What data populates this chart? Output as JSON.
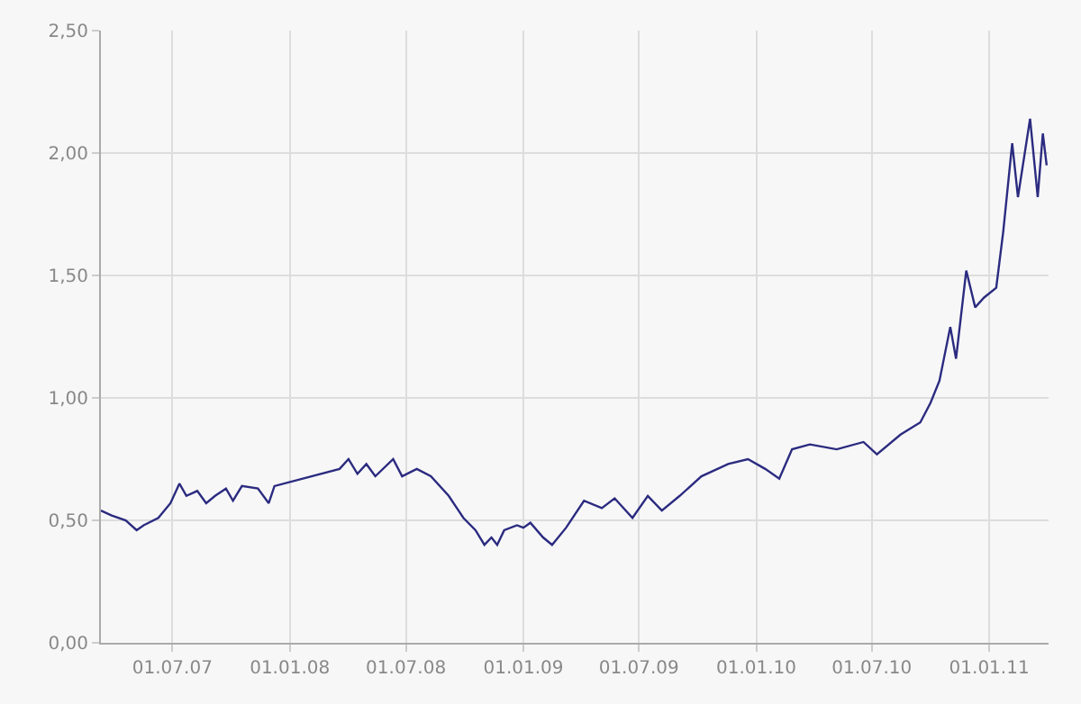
{
  "chart_data": {
    "type": "line",
    "x": [
      "2007-03-11",
      "2007-03-28",
      "2007-04-19",
      "2007-05-06",
      "2007-05-17",
      "2007-06-09",
      "2007-06-28",
      "2007-07-12",
      "2007-07-23",
      "2007-08-09",
      "2007-08-23",
      "2007-09-06",
      "2007-09-23",
      "2007-10-04",
      "2007-10-18",
      "2007-11-12",
      "2007-11-29",
      "2007-12-08",
      "2008-03-19",
      "2008-04-02",
      "2008-04-16",
      "2008-04-30",
      "2008-05-14",
      "2008-06-11",
      "2008-06-25",
      "2008-07-18",
      "2008-08-09",
      "2008-09-06",
      "2008-09-29",
      "2008-10-18",
      "2008-11-01",
      "2008-11-12",
      "2008-11-21",
      "2008-12-02",
      "2008-12-22",
      "2009-01-01",
      "2009-01-12",
      "2009-02-01",
      "2009-02-15",
      "2009-03-09",
      "2009-04-06",
      "2009-05-04",
      "2009-05-24",
      "2009-06-21",
      "2009-07-15",
      "2009-08-06",
      "2009-09-03",
      "2009-10-07",
      "2009-11-18",
      "2009-12-19",
      "2010-01-15",
      "2010-02-06",
      "2010-02-26",
      "2010-03-26",
      "2010-05-07",
      "2010-06-18",
      "2010-07-09",
      "2010-08-15",
      "2010-09-15",
      "2010-10-01",
      "2010-10-15",
      "2010-11-01",
      "2010-11-10",
      "2010-11-26",
      "2010-12-10",
      "2010-12-24",
      "2011-01-12",
      "2011-01-23",
      "2011-02-06",
      "2011-02-15",
      "2011-03-06",
      "2011-03-18",
      "2011-03-26",
      "2011-04-01"
    ],
    "series": [
      {
        "color": "#2b2b80",
        "values": [
          0.54,
          0.52,
          0.5,
          0.46,
          0.48,
          0.51,
          0.57,
          0.65,
          0.6,
          0.62,
          0.57,
          0.6,
          0.63,
          0.58,
          0.64,
          0.63,
          0.57,
          0.64,
          0.71,
          0.75,
          0.69,
          0.73,
          0.68,
          0.75,
          0.68,
          0.71,
          0.68,
          0.6,
          0.51,
          0.46,
          0.4,
          0.43,
          0.4,
          0.46,
          0.48,
          0.47,
          0.49,
          0.43,
          0.4,
          0.47,
          0.58,
          0.55,
          0.59,
          0.51,
          0.6,
          0.54,
          0.6,
          0.68,
          0.73,
          0.75,
          0.71,
          0.67,
          0.79,
          0.81,
          0.79,
          0.82,
          0.77,
          0.85,
          0.9,
          0.98,
          1.07,
          1.29,
          1.16,
          1.52,
          1.37,
          1.41,
          1.45,
          1.68,
          2.04,
          1.82,
          2.14,
          1.82,
          2.08,
          1.95
        ]
      }
    ],
    "xlim": [
      "2007-03-11",
      "2011-04-04"
    ],
    "xticks": [
      {
        "value": "2007-07-01",
        "label": "01.07.07"
      },
      {
        "value": "2008-01-01",
        "label": "01.01.08"
      },
      {
        "value": "2008-07-01",
        "label": "01.07.08"
      },
      {
        "value": "2009-01-01",
        "label": "01.01.09"
      },
      {
        "value": "2009-07-01",
        "label": "01.07.09"
      },
      {
        "value": "2010-01-01",
        "label": "01.01.10"
      },
      {
        "value": "2010-07-01",
        "label": "01.07.10"
      },
      {
        "value": "2011-01-01",
        "label": "01.01.11"
      }
    ],
    "ylim": [
      0,
      2.5
    ],
    "yticks": [
      {
        "value": 0,
        "label": "0,00"
      },
      {
        "value": 0.5,
        "label": "0,50"
      },
      {
        "value": 1,
        "label": "1,00"
      },
      {
        "value": 1.5,
        "label": "1,50"
      },
      {
        "value": 2,
        "label": "2,00"
      },
      {
        "value": 2.5,
        "label": "2,50"
      }
    ],
    "grid": true,
    "marker": "none",
    "line_style": "solid"
  }
}
